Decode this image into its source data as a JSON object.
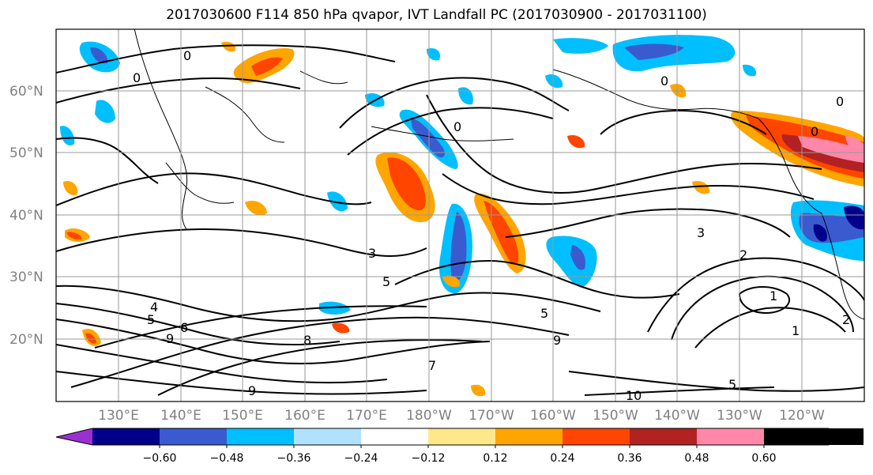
{
  "title": "2017030600 F114 850 hPa qvapor, IVT Landfall PC (2017030900 - 2017031100)",
  "lat_labels": [
    "60°N",
    "50°N",
    "40°N",
    "30°N",
    "20°N"
  ],
  "lon_labels": [
    "130°E",
    "140°E",
    "150°E",
    "160°E",
    "170°E",
    "180°W",
    "170°W",
    "160°W",
    "150°W",
    "140°W",
    "130°W",
    "120°W"
  ],
  "contour_labels": [
    "0",
    "0",
    "0",
    "0",
    "0",
    "0",
    "3",
    "5",
    "4",
    "5",
    "6",
    "9",
    "8",
    "7",
    "5",
    "9",
    "9",
    "2",
    "3",
    "1",
    "2",
    "1",
    "5",
    "10"
  ],
  "colorbar": {
    "colors": [
      "#9b30d0",
      "#00008b",
      "#3a5bd0",
      "#00bfff",
      "#b0e2ff",
      "#ffffff",
      "#ffe88a",
      "#ffa500",
      "#ff4500",
      "#b22222",
      "#ff88aa"
    ],
    "labels": [
      "−0.60",
      "−0.48",
      "−0.36",
      "−0.24",
      "−0.12",
      "0.12",
      "0.24",
      "0.36",
      "0.48",
      "0.60"
    ]
  }
}
